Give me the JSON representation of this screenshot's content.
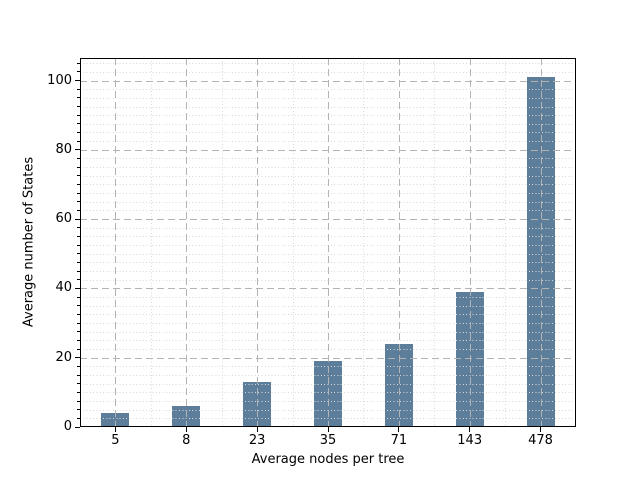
{
  "chart_data": {
    "type": "bar",
    "categories": [
      "5",
      "8",
      "23",
      "35",
      "71",
      "143",
      "478"
    ],
    "values": [
      4,
      6,
      13,
      19,
      24,
      39,
      101
    ],
    "title": "",
    "xlabel": "Average nodes per tree",
    "ylabel": "Average number of States",
    "yticks": [
      0,
      20,
      40,
      60,
      80,
      100
    ],
    "ylim": [
      0,
      106.5
    ],
    "minor_y_interval": 2.5,
    "grid": {
      "major": "dashed",
      "minor": "dotted",
      "drawn_over_bars": true
    },
    "legend": "none",
    "colors": {
      "bar": "#5c7e9b",
      "major_grid": "#b3b3b3",
      "minor_grid": "#d8d8d8",
      "axis": "#000000",
      "background": "#ffffff"
    }
  }
}
